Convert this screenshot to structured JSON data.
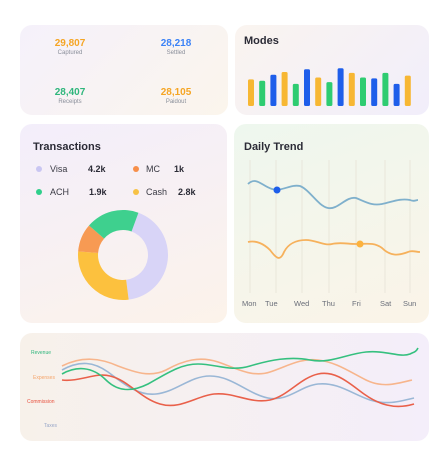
{
  "stats": [
    {
      "value": "29,807",
      "label": "Captured",
      "color": "#f5a524"
    },
    {
      "value": "28,218",
      "label": "Settled",
      "color": "#3b82f6"
    },
    {
      "value": "28,407",
      "label": "Receipts",
      "color": "#2fb67c"
    },
    {
      "value": "28,105",
      "label": "Paidout",
      "color": "#f5a524"
    }
  ],
  "modes": {
    "title": "Modes",
    "bars": [
      {
        "value": 0.58,
        "color": "#f7b733"
      },
      {
        "value": 0.55,
        "color": "#2ecc71"
      },
      {
        "value": 0.68,
        "color": "#1e5eea"
      },
      {
        "value": 0.74,
        "color": "#f7b733"
      },
      {
        "value": 0.48,
        "color": "#2ecc71"
      },
      {
        "value": 0.8,
        "color": "#1e5eea"
      },
      {
        "value": 0.62,
        "color": "#f7b733"
      },
      {
        "value": 0.52,
        "color": "#2ecc71"
      },
      {
        "value": 0.82,
        "color": "#1e5eea"
      },
      {
        "value": 0.72,
        "color": "#f7b733"
      },
      {
        "value": 0.62,
        "color": "#2ecc71"
      },
      {
        "value": 0.6,
        "color": "#1e5eea"
      },
      {
        "value": 0.72,
        "color": "#2ecc71"
      },
      {
        "value": 0.48,
        "color": "#1e5eea"
      },
      {
        "value": 0.66,
        "color": "#f7b733"
      }
    ]
  },
  "transactions": {
    "title": "Transactions",
    "legend": [
      {
        "label": "Visa",
        "value": "4.2k",
        "color": "#c9c6f2"
      },
      {
        "label": "MC",
        "value": "1k",
        "color": "#f78f4a"
      },
      {
        "label": "ACH",
        "value": "1.9k",
        "color": "#2fcf8b"
      },
      {
        "label": "Cash",
        "value": "2.8k",
        "color": "#f7c245"
      }
    ],
    "donut": [
      {
        "value": 4.2,
        "color": "#d8d4f7"
      },
      {
        "value": 2.8,
        "color": "#fcc13e"
      },
      {
        "value": 1.0,
        "color": "#f79a53"
      },
      {
        "value": 1.9,
        "color": "#3ed08e"
      }
    ]
  },
  "daily_trend": {
    "title": "Daily Trend",
    "days": [
      "Mon",
      "Tue",
      "Wed",
      "Thu",
      "Fri",
      "Sat",
      "Sun"
    ],
    "line1_color": "#7fb0cc",
    "line2_color": "#f6b15c"
  },
  "multi_line": {
    "labels": [
      {
        "text": "Revenue",
        "color": "#2fb67c"
      },
      {
        "text": "Expenses",
        "color": "#f5a56b"
      },
      {
        "text": "Commission",
        "color": "#e8523f"
      },
      {
        "text": "Taxes",
        "color": "#9aa8c8"
      }
    ]
  }
}
